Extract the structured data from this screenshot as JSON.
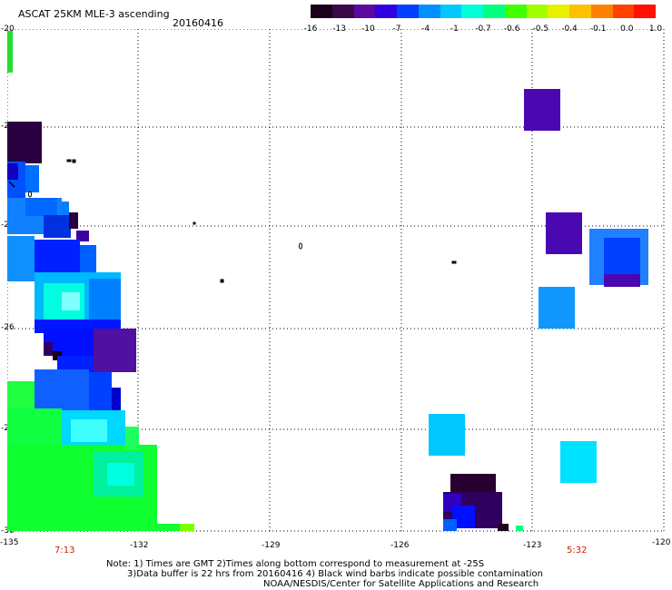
{
  "header": {
    "title": "ASCAT 25KM MLE-3 ascending",
    "date": "20160416"
  },
  "colorbar": {
    "labels": [
      "-16",
      "-13",
      "-10",
      "-7",
      "-4",
      "-1",
      "-0.7",
      "-0.6",
      "-0.5",
      "-0.4",
      "-0.1",
      "0.0",
      "1.0"
    ],
    "colors": [
      "#1a0018",
      "#3a0a48",
      "#5a0aa0",
      "#3000e0",
      "#0040ff",
      "#0090ff",
      "#00c8ff",
      "#00ffd8",
      "#00ff80",
      "#40ff00",
      "#a0ff00",
      "#e8f000",
      "#ffc000",
      "#ff8000",
      "#ff4000",
      "#ff1000"
    ]
  },
  "axes": {
    "x_labels": [
      "-135",
      "-132",
      "-129",
      "-126",
      "-123",
      "-120"
    ],
    "y_labels": [
      "-20",
      "-22",
      "-24",
      "-26",
      "-28",
      "-30"
    ]
  },
  "times": {
    "left": "7:13",
    "right": "5:32"
  },
  "notes": {
    "line1": "Note: 1) Times are GMT 2)Times along bottom correspond to measurement at -25S",
    "line2": "3)Data buffer is 22 hrs from 20160416 4) Black wind barbs indicate possible contamination",
    "line3": "NOAA/NESDIS/Center for Satellite Applications and Research"
  }
}
